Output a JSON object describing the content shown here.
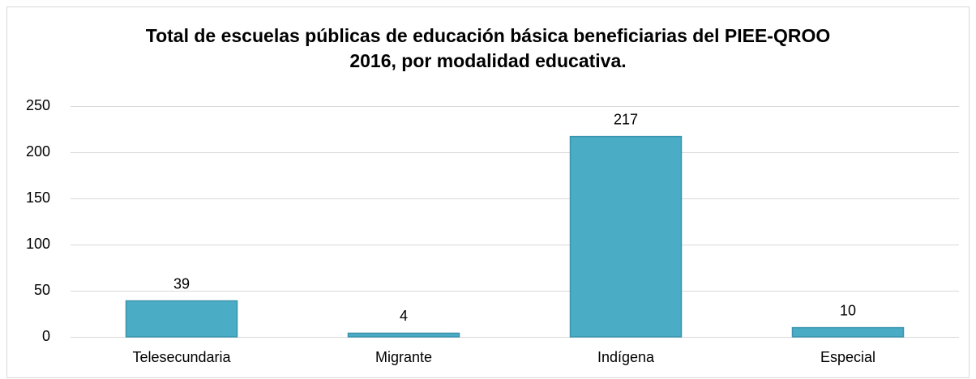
{
  "chart_data": {
    "type": "bar",
    "title": "Total de escuelas públicas de educación básica beneficiarias del PIEE-QROO 2016, por modalidad educativa.",
    "categories": [
      "Telesecundaria",
      "Migrante",
      "Indígena",
      "Especial"
    ],
    "values": [
      39,
      4,
      217,
      10
    ],
    "color": "#4bacc6",
    "ylim": [
      0,
      250
    ],
    "yticks": [
      0,
      50,
      100,
      150,
      200,
      250
    ],
    "grid": true
  }
}
